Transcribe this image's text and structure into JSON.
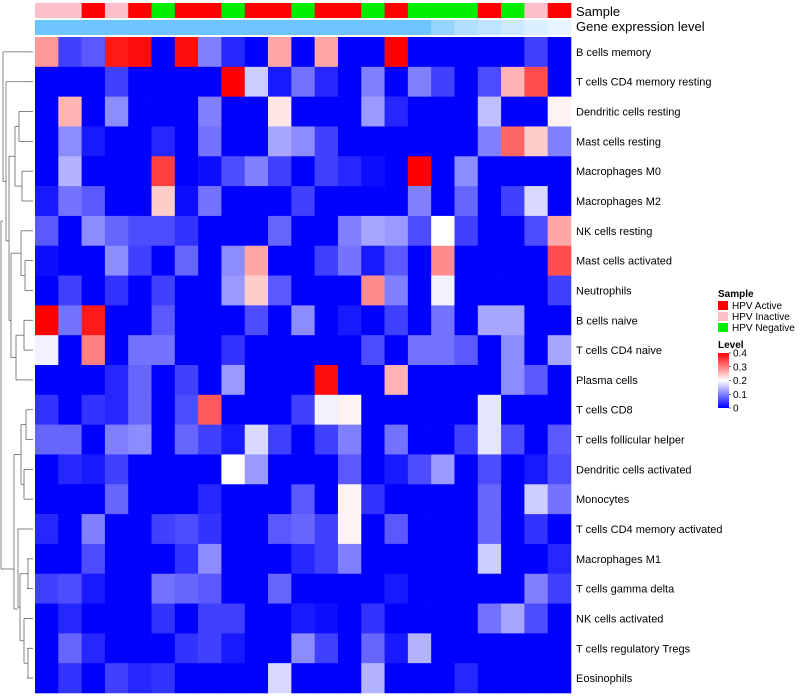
{
  "chart_data": {
    "type": "heatmap",
    "annotation_labels": {
      "sample": "Sample",
      "gene_expression": "Gene expression level"
    },
    "samples": [
      "HPV Inactive",
      "HPV Inactive",
      "HPV Active",
      "HPV Inactive",
      "HPV Active",
      "HPV Negative",
      "HPV Active",
      "HPV Active",
      "HPV Negative",
      "HPV Active",
      "HPV Active",
      "HPV Negative",
      "HPV Active",
      "HPV Active",
      "HPV Negative",
      "HPV Active",
      "HPV Negative",
      "HPV Negative",
      "HPV Negative",
      "HPV Active",
      "HPV Negative",
      "HPV Inactive",
      "HPV Active"
    ],
    "gene_expression_level": [
      0.9,
      0.9,
      0.9,
      0.9,
      0.9,
      0.9,
      0.9,
      0.9,
      0.9,
      0.9,
      0.9,
      0.9,
      0.9,
      0.9,
      0.9,
      0.9,
      0.9,
      0.6,
      0.4,
      0.3,
      0.2,
      0.1,
      0.0
    ],
    "rows": [
      "B cells memory",
      "T cells CD4 memory resting",
      "Dendritic cells resting",
      "Mast cells resting",
      "Macrophages M0",
      "Macrophages M2",
      "NK cells resting",
      "Mast cells activated",
      "Neutrophils",
      "B cells naive",
      "T cells CD4 naive",
      "Plasma cells",
      "T cells CD8",
      "T cells follicular helper",
      "Dendritic cells activated",
      "Monocytes",
      "T cells CD4 memory activated",
      "Macrophages M1",
      "T cells gamma delta",
      "NK cells activated",
      "T cells regulatory  Tregs",
      "Eosinophils"
    ],
    "values": [
      [
        0.28,
        0.05,
        0.07,
        0.38,
        0.39,
        0,
        0.39,
        0.1,
        0.03,
        0,
        0.27,
        0,
        0.27,
        0,
        0,
        0.4,
        0,
        0,
        0,
        0,
        0,
        0.05,
        0
      ],
      [
        0,
        0,
        0,
        0.05,
        0,
        0,
        0,
        0,
        0.4,
        0.16,
        0.02,
        0.09,
        0.03,
        0,
        0.1,
        0,
        0.1,
        0.05,
        0,
        0.06,
        0.26,
        0.34,
        0
      ],
      [
        0,
        0.26,
        0,
        0.11,
        0,
        0,
        0,
        0.1,
        0,
        0,
        0.22,
        0,
        0,
        0,
        0.12,
        0.03,
        0,
        0,
        0,
        0.15,
        0,
        0,
        0.21
      ],
      [
        0,
        0.11,
        0.02,
        0,
        0,
        0.03,
        0,
        0.09,
        0,
        0,
        0.13,
        0.11,
        0.05,
        0,
        0,
        0,
        0,
        0,
        0,
        0.1,
        0.32,
        0.24,
        0.1
      ],
      [
        0,
        0.14,
        0,
        0,
        0,
        0.35,
        0,
        0.01,
        0.06,
        0.1,
        0.05,
        0,
        0.05,
        0.03,
        0.01,
        0,
        0.4,
        0,
        0.11,
        0,
        0,
        0,
        0
      ],
      [
        0.02,
        0.09,
        0.07,
        0,
        0,
        0.24,
        0.01,
        0.09,
        0,
        0,
        0,
        0.05,
        0,
        0,
        0,
        0,
        0.1,
        0,
        0.08,
        0,
        0.05,
        0.17,
        0
      ],
      [
        0.07,
        0,
        0.11,
        0.08,
        0.06,
        0.06,
        0.04,
        0,
        0,
        0,
        0.08,
        0,
        0,
        0.1,
        0.13,
        0.12,
        0.06,
        0.2,
        0.05,
        0,
        0,
        0.06,
        0.27
      ],
      [
        0.01,
        0,
        0,
        0.11,
        0.05,
        0,
        0.08,
        0,
        0.11,
        0.27,
        0,
        0,
        0.05,
        0.09,
        0.02,
        0.07,
        0,
        0.29,
        0,
        0,
        0,
        0,
        0.34
      ],
      [
        0,
        0.05,
        0,
        0.04,
        0,
        0.05,
        0,
        0,
        0.12,
        0.24,
        0.07,
        0,
        0,
        0,
        0.29,
        0.1,
        0,
        0.19,
        0,
        0,
        0,
        0,
        0.05
      ],
      [
        0.4,
        0.09,
        0.38,
        0,
        0,
        0.07,
        0,
        0,
        0,
        0.06,
        0,
        0.11,
        0,
        0.02,
        0,
        0.05,
        0,
        0.09,
        0,
        0.13,
        0.13,
        0,
        0
      ],
      [
        0.19,
        0,
        0.3,
        0,
        0.09,
        0.09,
        0,
        0,
        0.04,
        0,
        0,
        0,
        0,
        0,
        0.06,
        0,
        0.09,
        0.09,
        0.07,
        0,
        0.11,
        0,
        0.13
      ],
      [
        0,
        0,
        0,
        0.03,
        0.08,
        0,
        0.05,
        0,
        0.12,
        0,
        0,
        0,
        0.39,
        0,
        0,
        0.26,
        0,
        0,
        0,
        0,
        0.11,
        0.07,
        0
      ],
      [
        0.04,
        0,
        0.04,
        0.03,
        0.08,
        0,
        0.06,
        0.33,
        0,
        0,
        0,
        0.05,
        0.19,
        0.21,
        0,
        0,
        0,
        0,
        0,
        0.18,
        0,
        0,
        0
      ],
      [
        0.08,
        0.08,
        0,
        0.1,
        0.11,
        0,
        0.08,
        0.05,
        0.02,
        0.17,
        0.05,
        0,
        0.05,
        0.1,
        0,
        0.09,
        0,
        0,
        0.05,
        0.18,
        0.06,
        0,
        0.07
      ],
      [
        0,
        0.03,
        0.02,
        0.05,
        0,
        0,
        0,
        0,
        0.2,
        0.12,
        0,
        0,
        0,
        0.07,
        0,
        0.02,
        0.06,
        0.12,
        0,
        0.06,
        0,
        0.02,
        0.06
      ],
      [
        0,
        0,
        0,
        0.08,
        0,
        0,
        0,
        0.03,
        0,
        0,
        0,
        0.07,
        0,
        0.21,
        0.04,
        0,
        0,
        0,
        0,
        0.08,
        0,
        0.16,
        0.09
      ],
      [
        0.03,
        0,
        0.1,
        0,
        0,
        0.05,
        0.06,
        0.04,
        0,
        0,
        0.07,
        0.08,
        0.05,
        0.21,
        0,
        0.07,
        0,
        0,
        0,
        0.08,
        0,
        0.04,
        0
      ],
      [
        0,
        0,
        0.06,
        0,
        0,
        0,
        0.04,
        0.11,
        0,
        0,
        0,
        0.03,
        0.05,
        0.1,
        0,
        0,
        0,
        0,
        0,
        0.16,
        0,
        0,
        0.03
      ],
      [
        0.05,
        0.06,
        0.02,
        0,
        0,
        0.09,
        0.08,
        0.07,
        0,
        0,
        0.08,
        0,
        0,
        0,
        0,
        0.02,
        0,
        0,
        0,
        0,
        0,
        0.1,
        0.05
      ],
      [
        0,
        0.03,
        0,
        0,
        0,
        0.04,
        0,
        0.05,
        0.05,
        0,
        0,
        0.02,
        0.01,
        0,
        0.04,
        0,
        0,
        0,
        0,
        0.09,
        0.13,
        0.06,
        0
      ],
      [
        0,
        0.08,
        0.03,
        0,
        0,
        0,
        0.04,
        0.05,
        0.02,
        0,
        0,
        0.11,
        0.05,
        0,
        0.08,
        0.02,
        0.14,
        0,
        0,
        0,
        0,
        0,
        0
      ],
      [
        0,
        0.04,
        0,
        0.05,
        0.03,
        0.04,
        0,
        0,
        0,
        0,
        0.17,
        0,
        0,
        0,
        0.14,
        0,
        0,
        0,
        0.03,
        0,
        0,
        0,
        0
      ]
    ],
    "legend": {
      "sample": {
        "title": "Sample",
        "items": [
          {
            "label": "HPV Active",
            "color": "#ff0000"
          },
          {
            "label": "HPV Inactive",
            "color": "#ffc0cb"
          },
          {
            "label": "HPV Negative",
            "color": "#00ee00"
          }
        ]
      },
      "level": {
        "title": "Level",
        "ticks": [
          "0.4",
          "0.3",
          "0.2",
          "0.1",
          "0"
        ],
        "tick_values": [
          0.4,
          0.3,
          0.2,
          0.1,
          0
        ],
        "range": [
          0,
          0.4
        ]
      }
    },
    "colors": {
      "low": "#0000ff",
      "mid": "#ffffff",
      "high": "#ff0000",
      "gene_low": "#e8f4ff",
      "gene_high": "#5fbfff",
      "dendrogram": "#666666"
    }
  }
}
